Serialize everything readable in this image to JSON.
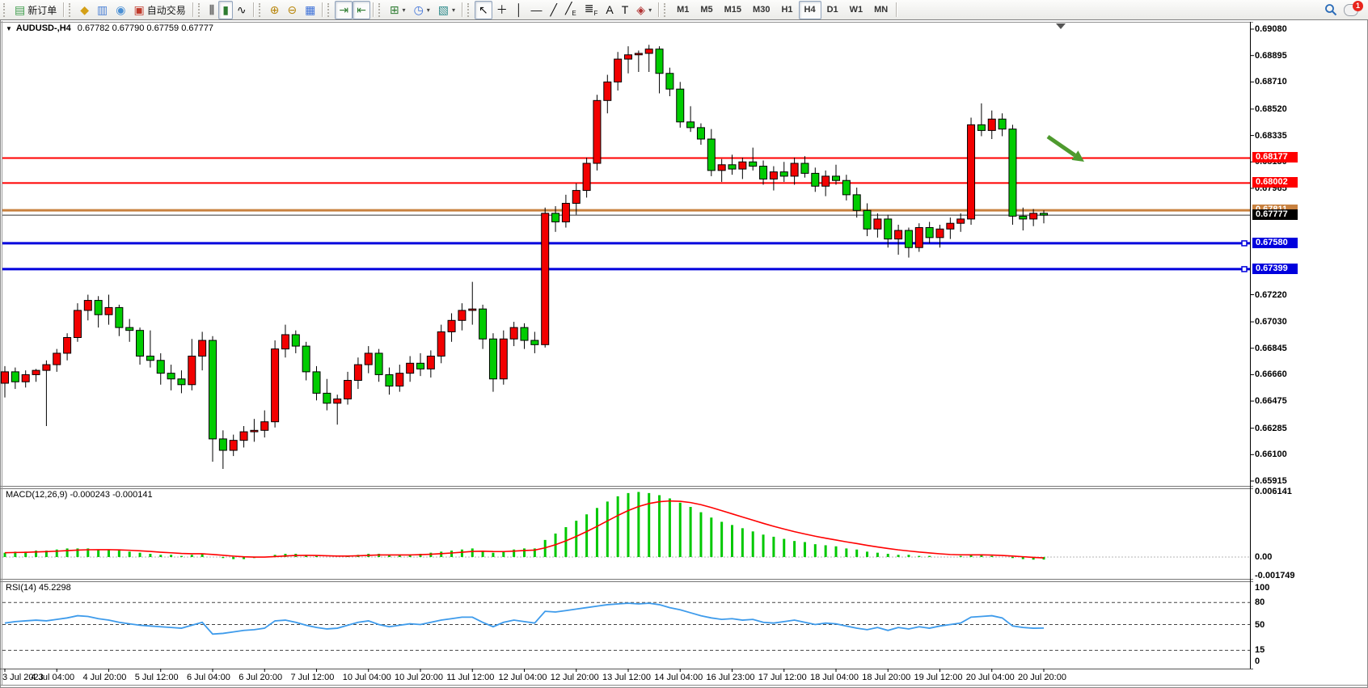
{
  "toolbar": {
    "groups": [
      {
        "buttons": [
          {
            "name": "new-order",
            "icon": "new-order",
            "label": "新订单"
          }
        ]
      },
      {
        "buttons": [
          {
            "name": "market-watch",
            "icon": "market-watch"
          },
          {
            "name": "data-window",
            "icon": "data-window"
          },
          {
            "name": "navigator",
            "icon": "navigator"
          },
          {
            "name": "auto-trading",
            "icon": "auto-trading",
            "label": "自动交易"
          }
        ]
      },
      {
        "buttons": [
          {
            "name": "bar-chart",
            "icon": "bar-chart"
          },
          {
            "name": "candlestick-chart",
            "icon": "candlestick",
            "pressed": true
          },
          {
            "name": "line-chart",
            "icon": "line-chart"
          }
        ]
      },
      {
        "buttons": [
          {
            "name": "zoom-in",
            "icon": "zoom-in"
          },
          {
            "name": "zoom-out",
            "icon": "zoom-out"
          },
          {
            "name": "tile-windows",
            "icon": "tile-windows"
          }
        ]
      },
      {
        "buttons": [
          {
            "name": "auto-scroll",
            "icon": "auto-scroll",
            "pressed": true
          },
          {
            "name": "chart-shift",
            "icon": "chart-shift",
            "pressed": true
          }
        ]
      },
      {
        "buttons": [
          {
            "name": "indicators-list",
            "icon": "indicators",
            "dropdown": true
          },
          {
            "name": "periods",
            "icon": "periods",
            "dropdown": true
          },
          {
            "name": "templates",
            "icon": "templates",
            "dropdown": true
          }
        ]
      },
      {
        "buttons": [
          {
            "name": "cursor",
            "icon": "cursor",
            "pressed": true
          },
          {
            "name": "crosshair",
            "icon": "crosshair"
          },
          {
            "name": "vertical-line-tool",
            "icon": "vline"
          },
          {
            "name": "horizontal-line-tool",
            "icon": "hline"
          },
          {
            "name": "trendline-tool",
            "icon": "trend"
          },
          {
            "name": "equidistant-channel-tool",
            "icon": "channel"
          },
          {
            "name": "fibonacci-tool",
            "icon": "fibo"
          },
          {
            "name": "text-tool",
            "icon": "text"
          },
          {
            "name": "text-label-tool",
            "icon": "label"
          },
          {
            "name": "arrows-tool",
            "icon": "arrows",
            "dropdown": true
          }
        ]
      },
      {
        "buttons": [
          {
            "name": "tf-m1",
            "label": "M1",
            "tf": true
          },
          {
            "name": "tf-m5",
            "label": "M5",
            "tf": true
          },
          {
            "name": "tf-m15",
            "label": "M15",
            "tf": true
          },
          {
            "name": "tf-m30",
            "label": "M30",
            "tf": true
          },
          {
            "name": "tf-h1",
            "label": "H1",
            "tf": true
          },
          {
            "name": "tf-h4",
            "label": "H4",
            "tf": true,
            "pressed": true
          },
          {
            "name": "tf-d1",
            "label": "D1",
            "tf": true
          },
          {
            "name": "tf-w1",
            "label": "W1",
            "tf": true
          },
          {
            "name": "tf-mn",
            "label": "MN",
            "tf": true
          }
        ]
      }
    ],
    "right": {
      "search_icon": "search",
      "chat_icon": "chat",
      "chat_badge": "1"
    }
  },
  "chart": {
    "title": {
      "dropdown_icon": "▼",
      "symbol_period": "AUDUSD-,H4",
      "ohlc": "0.67782 0.67790 0.67759 0.67777"
    }
  },
  "indicators": {
    "macd": {
      "label": "MACD(12,26,9) -0.000243 -0.000141"
    },
    "rsi": {
      "label": "RSI(14) 45.2298"
    }
  },
  "chart_data": {
    "type": "candlestick",
    "symbol": "AUDUSD",
    "timeframe": "H4",
    "convention": "chinese (red=bullish, green=bearish)",
    "colors": {
      "bull": "#F20000",
      "bear": "#00CC00",
      "outline": "#000000",
      "macd_hist": "#00C800",
      "macd_signal": "#FF0000",
      "rsi_line": "#3E9BEB",
      "red_line": "#FF0000",
      "blue_line": "#0000DD",
      "orange_line": "#C8813F",
      "price_marker_bg": "#000000"
    },
    "current_price": 0.67777,
    "price_axis_ticks": [
      "0.69080",
      "0.68895",
      "0.68710",
      "0.68520",
      "0.68335",
      "0.68150",
      "0.67965",
      "0.67220",
      "0.67030",
      "0.66845",
      "0.66660",
      "0.66475",
      "0.66285",
      "0.66100",
      "0.65915"
    ],
    "price_axis_range": {
      "top_tick": 0.6908,
      "bottom_tick": 0.65915
    },
    "hlines": [
      {
        "price": 0.68177,
        "label": "0.68177",
        "color": "#FF0000",
        "width": 2
      },
      {
        "price": 0.68002,
        "label": "0.68002",
        "color": "#FF0000",
        "width": 2
      },
      {
        "price": 0.67811,
        "label": "0.67811",
        "color": "#C8813F",
        "width": 3
      },
      {
        "price": 0.6758,
        "label": "0.67580",
        "color": "#0000DD",
        "width": 3,
        "handle": true
      },
      {
        "price": 0.67399,
        "label": "0.67399",
        "color": "#0000DD",
        "width": 3,
        "handle": true
      }
    ],
    "x_labels": [
      "3 Jul 2023",
      "4 Jul 04:00",
      "4 Jul 20:00",
      "5 Jul 12:00",
      "6 Jul 04:00",
      "6 Jul 20:00",
      "7 Jul 12:00",
      "10 Jul 04:00",
      "10 Jul 20:00",
      "11 Jul 12:00",
      "12 Jul 04:00",
      "12 Jul 20:00",
      "13 Jul 12:00",
      "14 Jul 04:00",
      "16 Jul 23:00",
      "17 Jul 12:00",
      "18 Jul 04:00",
      "18 Jul 20:00",
      "19 Jul 12:00",
      "20 Jul 04:00",
      "20 Jul 20:00"
    ],
    "x_label_every_n_bars": 5,
    "candles_ohlc": [
      [
        0.666,
        0.6672,
        0.665,
        0.6668
      ],
      [
        0.6668,
        0.6671,
        0.6656,
        0.6661
      ],
      [
        0.6661,
        0.6669,
        0.6657,
        0.6666
      ],
      [
        0.6666,
        0.667,
        0.6661,
        0.6669
      ],
      [
        0.6669,
        0.6676,
        0.663,
        0.6673
      ],
      [
        0.6673,
        0.6684,
        0.6668,
        0.6681
      ],
      [
        0.6681,
        0.6695,
        0.6676,
        0.6692
      ],
      [
        0.6692,
        0.6716,
        0.6689,
        0.6711
      ],
      [
        0.6711,
        0.6722,
        0.6704,
        0.6718
      ],
      [
        0.6718,
        0.6721,
        0.6699,
        0.6708
      ],
      [
        0.6708,
        0.6722,
        0.6701,
        0.6713
      ],
      [
        0.6713,
        0.6715,
        0.6693,
        0.6699
      ],
      [
        0.6699,
        0.6705,
        0.6689,
        0.6697
      ],
      [
        0.6697,
        0.6699,
        0.6673,
        0.6679
      ],
      [
        0.6679,
        0.6697,
        0.6671,
        0.6676
      ],
      [
        0.6676,
        0.6681,
        0.6659,
        0.6667
      ],
      [
        0.6667,
        0.6673,
        0.6655,
        0.6663
      ],
      [
        0.6663,
        0.6669,
        0.6653,
        0.6659
      ],
      [
        0.6659,
        0.6691,
        0.6655,
        0.6679
      ],
      [
        0.6679,
        0.6696,
        0.6669,
        0.669
      ],
      [
        0.669,
        0.6693,
        0.6605,
        0.6621
      ],
      [
        0.6621,
        0.6627,
        0.66,
        0.6613
      ],
      [
        0.6613,
        0.6624,
        0.6609,
        0.662
      ],
      [
        0.662,
        0.663,
        0.6615,
        0.6626
      ],
      [
        0.6626,
        0.6635,
        0.6619,
        0.6627
      ],
      [
        0.6627,
        0.6641,
        0.6622,
        0.6633
      ],
      [
        0.6633,
        0.669,
        0.6629,
        0.6684
      ],
      [
        0.6684,
        0.6701,
        0.6678,
        0.6694
      ],
      [
        0.6694,
        0.6697,
        0.6681,
        0.6686
      ],
      [
        0.6686,
        0.6689,
        0.6662,
        0.6668
      ],
      [
        0.6668,
        0.6672,
        0.6648,
        0.6653
      ],
      [
        0.6653,
        0.6663,
        0.6641,
        0.6646
      ],
      [
        0.6646,
        0.6652,
        0.6631,
        0.6649
      ],
      [
        0.6649,
        0.6668,
        0.6645,
        0.6662
      ],
      [
        0.6662,
        0.6678,
        0.6656,
        0.6673
      ],
      [
        0.6673,
        0.6686,
        0.6667,
        0.6681
      ],
      [
        0.6681,
        0.6684,
        0.6661,
        0.6666
      ],
      [
        0.6666,
        0.6671,
        0.6652,
        0.6658
      ],
      [
        0.6658,
        0.6673,
        0.6654,
        0.6667
      ],
      [
        0.6667,
        0.6679,
        0.6661,
        0.6674
      ],
      [
        0.6674,
        0.6681,
        0.6665,
        0.667
      ],
      [
        0.667,
        0.6683,
        0.6664,
        0.6679
      ],
      [
        0.6679,
        0.6701,
        0.6674,
        0.6696
      ],
      [
        0.6696,
        0.6709,
        0.6689,
        0.6704
      ],
      [
        0.6704,
        0.6716,
        0.6697,
        0.6711
      ],
      [
        0.6711,
        0.6731,
        0.6701,
        0.6712
      ],
      [
        0.6712,
        0.6715,
        0.6684,
        0.6691
      ],
      [
        0.6691,
        0.6695,
        0.6654,
        0.6663
      ],
      [
        0.6663,
        0.6697,
        0.6659,
        0.6691
      ],
      [
        0.6691,
        0.6703,
        0.6686,
        0.6699
      ],
      [
        0.6699,
        0.6702,
        0.6684,
        0.669
      ],
      [
        0.669,
        0.6696,
        0.6681,
        0.6687
      ],
      [
        0.6687,
        0.6783,
        0.6685,
        0.6779
      ],
      [
        0.6779,
        0.6784,
        0.6766,
        0.6773
      ],
      [
        0.6773,
        0.6792,
        0.6769,
        0.6786
      ],
      [
        0.6786,
        0.68,
        0.6778,
        0.6795
      ],
      [
        0.6795,
        0.6818,
        0.679,
        0.6814
      ],
      [
        0.6814,
        0.6862,
        0.6809,
        0.6858
      ],
      [
        0.6858,
        0.6876,
        0.6849,
        0.6871
      ],
      [
        0.6871,
        0.6892,
        0.6865,
        0.6887
      ],
      [
        0.6887,
        0.6896,
        0.6877,
        0.689
      ],
      [
        0.689,
        0.6893,
        0.6878,
        0.6891
      ],
      [
        0.6891,
        0.6897,
        0.6878,
        0.6894
      ],
      [
        0.6894,
        0.6896,
        0.6863,
        0.6877
      ],
      [
        0.6877,
        0.6881,
        0.6861,
        0.6866
      ],
      [
        0.6866,
        0.6871,
        0.6839,
        0.6843
      ],
      [
        0.6843,
        0.6854,
        0.6836,
        0.6839
      ],
      [
        0.6839,
        0.6842,
        0.6827,
        0.6831
      ],
      [
        0.6831,
        0.6838,
        0.6805,
        0.6809
      ],
      [
        0.6809,
        0.6817,
        0.6801,
        0.6813
      ],
      [
        0.6813,
        0.682,
        0.6806,
        0.681
      ],
      [
        0.681,
        0.6818,
        0.6803,
        0.6815
      ],
      [
        0.6815,
        0.6825,
        0.6809,
        0.6812
      ],
      [
        0.6812,
        0.6816,
        0.6799,
        0.6803
      ],
      [
        0.6803,
        0.6812,
        0.6795,
        0.6808
      ],
      [
        0.6808,
        0.6815,
        0.6801,
        0.6805
      ],
      [
        0.6805,
        0.6818,
        0.6799,
        0.6814
      ],
      [
        0.6814,
        0.6819,
        0.6804,
        0.6807
      ],
      [
        0.6807,
        0.6811,
        0.6794,
        0.6798
      ],
      [
        0.6798,
        0.6809,
        0.6791,
        0.6805
      ],
      [
        0.6805,
        0.6813,
        0.6799,
        0.6802
      ],
      [
        0.6802,
        0.6806,
        0.6788,
        0.6792
      ],
      [
        0.6792,
        0.6797,
        0.6776,
        0.6781
      ],
      [
        0.6781,
        0.6786,
        0.6763,
        0.6768
      ],
      [
        0.6768,
        0.6779,
        0.6762,
        0.6775
      ],
      [
        0.6775,
        0.6778,
        0.6755,
        0.6761
      ],
      [
        0.6761,
        0.6771,
        0.675,
        0.6767
      ],
      [
        0.6767,
        0.6769,
        0.6748,
        0.6755
      ],
      [
        0.6755,
        0.6772,
        0.6752,
        0.6769
      ],
      [
        0.6769,
        0.6773,
        0.6758,
        0.6762
      ],
      [
        0.6762,
        0.6771,
        0.6755,
        0.6768
      ],
      [
        0.6768,
        0.6776,
        0.6761,
        0.6772
      ],
      [
        0.6772,
        0.6779,
        0.6766,
        0.6775
      ],
      [
        0.6775,
        0.6846,
        0.6771,
        0.6841
      ],
      [
        0.6841,
        0.6856,
        0.6833,
        0.6837
      ],
      [
        0.6837,
        0.6851,
        0.6831,
        0.6845
      ],
      [
        0.6845,
        0.6849,
        0.6833,
        0.6838
      ],
      [
        0.6838,
        0.6841,
        0.6771,
        0.6777
      ],
      [
        0.6777,
        0.6783,
        0.6767,
        0.6775
      ],
      [
        0.6775,
        0.6782,
        0.677,
        0.6779
      ],
      [
        0.6779,
        0.6781,
        0.6772,
        0.67777
      ]
    ],
    "macd": {
      "axis_ticks": [
        "0.006141",
        "0.00",
        "-0.001749"
      ],
      "range": {
        "max": 0.006141,
        "min": -0.001749
      },
      "values": [
        0.0004,
        0.0005,
        0.0005,
        0.0006,
        0.0006,
        0.0007,
        0.0008,
        0.0008,
        0.0008,
        0.0007,
        0.0007,
        0.0006,
        0.0005,
        0.0004,
        0.0003,
        0.0002,
        0.0002,
        0.0001,
        0.0002,
        0.0003,
        0.0,
        -0.0001,
        -0.0002,
        -0.0002,
        -0.0001,
        0.0,
        0.0002,
        0.0003,
        0.0003,
        0.0002,
        0.0001,
        0.0,
        0.0,
        0.0001,
        0.0002,
        0.0003,
        0.0003,
        0.0002,
        0.0002,
        0.0002,
        0.0003,
        0.0004,
        0.0005,
        0.0006,
        0.0007,
        0.0008,
        0.0006,
        0.0004,
        0.0005,
        0.0007,
        0.0008,
        0.0008,
        0.0016,
        0.0022,
        0.0028,
        0.0034,
        0.004,
        0.0046,
        0.0052,
        0.0057,
        0.006,
        0.0061,
        0.006,
        0.0058,
        0.0055,
        0.0051,
        0.0047,
        0.0042,
        0.0037,
        0.0033,
        0.003,
        0.0027,
        0.0024,
        0.0021,
        0.0019,
        0.0017,
        0.0015,
        0.0014,
        0.0012,
        0.0011,
        0.001,
        0.0008,
        0.0007,
        0.0005,
        0.0004,
        0.0003,
        0.0002,
        0.0002,
        0.0001,
        0.0001,
        0.0,
        0.0,
        0.0001,
        0.0002,
        0.0002,
        0.0001,
        0.0,
        -0.0001,
        -0.0002,
        -0.00025,
        -0.000243
      ]
    },
    "rsi": {
      "axis_ticks": [
        "100",
        "80",
        "50",
        "15",
        "0"
      ],
      "levels_dashed": [
        80,
        50,
        15
      ],
      "range": {
        "max": 100,
        "min": 0
      },
      "values": [
        52,
        54,
        55,
        56,
        55,
        57,
        59,
        62,
        61,
        58,
        56,
        53,
        51,
        49,
        48,
        47,
        46,
        45,
        49,
        53,
        37,
        38,
        40,
        42,
        43,
        45,
        55,
        56,
        53,
        49,
        46,
        44,
        45,
        49,
        53,
        55,
        50,
        47,
        49,
        51,
        50,
        53,
        56,
        58,
        60,
        60,
        53,
        47,
        53,
        56,
        54,
        52,
        68,
        67,
        69,
        71,
        73,
        75,
        77,
        78,
        79,
        78,
        79,
        77,
        73,
        70,
        66,
        62,
        59,
        57,
        58,
        56,
        57,
        53,
        52,
        54,
        56,
        53,
        50,
        52,
        51,
        48,
        45,
        43,
        46,
        42,
        46,
        44,
        47,
        45,
        48,
        50,
        52,
        60,
        61,
        62,
        59,
        48,
        46,
        45,
        45.2298
      ]
    },
    "annotations": [
      {
        "type": "arrow",
        "name": "green-arrow-annotation",
        "from": [
          1296,
          169
        ],
        "to": [
          1341,
          200
        ],
        "color": "#4E9A2E"
      }
    ]
  }
}
